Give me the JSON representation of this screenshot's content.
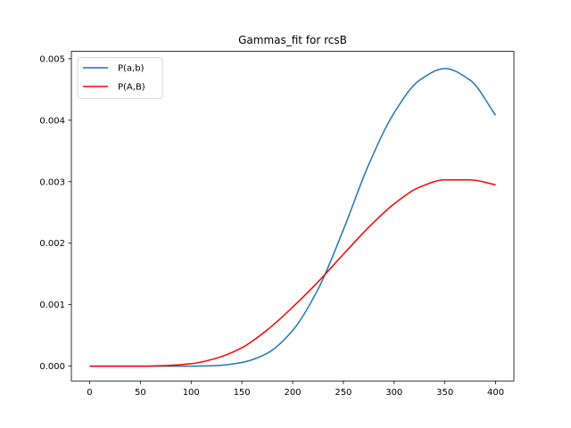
{
  "chart_data": {
    "type": "line",
    "title": "Gammas_fit for rcsB",
    "xlabel": "",
    "ylabel": "",
    "xlim": [
      -18,
      418
    ],
    "ylim": [
      -0.00024,
      0.00512
    ],
    "x_ticks": [
      0,
      50,
      100,
      150,
      200,
      250,
      300,
      350,
      400
    ],
    "x_tick_labels": [
      "0",
      "50",
      "100",
      "150",
      "200",
      "250",
      "300",
      "350",
      "400"
    ],
    "y_ticks": [
      0.0,
      0.001,
      0.002,
      0.003,
      0.004,
      0.005
    ],
    "y_tick_labels": [
      "0.000",
      "0.001",
      "0.002",
      "0.003",
      "0.004",
      "0.005"
    ],
    "grid": false,
    "legend": "top-left",
    "series": [
      {
        "name": "P(a,b)",
        "color": "#1f77b4",
        "x": [
          0,
          50,
          100,
          125,
          150,
          175,
          200,
          225,
          250,
          275,
          300,
          325,
          350,
          375,
          400
        ],
        "y": [
          0.0,
          0.0,
          0.0,
          1e-05,
          6e-05,
          0.00021,
          0.00058,
          0.00125,
          0.00222,
          0.00328,
          0.00412,
          0.00465,
          0.00484,
          0.00465,
          0.00408
        ]
      },
      {
        "name": "P(A,B)",
        "color": "#ff0000",
        "x": [
          0,
          50,
          75,
          100,
          125,
          150,
          175,
          200,
          225,
          250,
          275,
          300,
          325,
          350,
          375,
          400
        ],
        "y": [
          0.0,
          0.0,
          1e-05,
          4e-05,
          0.00013,
          0.0003,
          0.00059,
          0.00096,
          0.00137,
          0.00182,
          0.00226,
          0.00264,
          0.00291,
          0.00303,
          0.00303,
          0.00295
        ]
      }
    ]
  }
}
